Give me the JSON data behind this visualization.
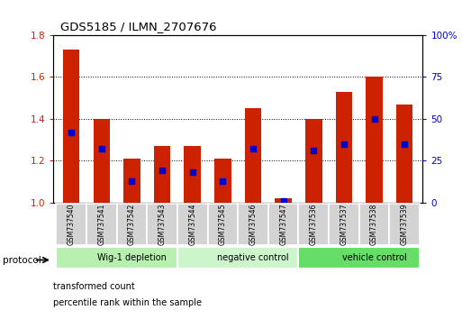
{
  "title": "GDS5185 / ILMN_2707676",
  "samples": [
    "GSM737540",
    "GSM737541",
    "GSM737542",
    "GSM737543",
    "GSM737544",
    "GSM737545",
    "GSM737546",
    "GSM737547",
    "GSM737536",
    "GSM737537",
    "GSM737538",
    "GSM737539"
  ],
  "transformed_counts": [
    1.73,
    1.4,
    1.21,
    1.27,
    1.27,
    1.21,
    1.45,
    1.02,
    1.4,
    1.53,
    1.6,
    1.47
  ],
  "percentile_ranks": [
    42,
    32,
    13,
    19,
    18,
    13,
    32,
    1,
    31,
    35,
    50,
    35
  ],
  "ylim_left": [
    1.0,
    1.8
  ],
  "ylim_right": [
    0,
    100
  ],
  "yticks_left": [
    1.0,
    1.2,
    1.4,
    1.6,
    1.8
  ],
  "yticks_right": [
    0,
    25,
    50,
    75,
    100
  ],
  "ytick_labels_right": [
    "0",
    "25",
    "50",
    "75",
    "100%"
  ],
  "bar_color": "#cc2200",
  "dot_color": "#0000cc",
  "groups": [
    {
      "label": "Wig-1 depletion",
      "start": 0,
      "end": 4,
      "color": "#b8f0b0"
    },
    {
      "label": "negative control",
      "start": 4,
      "end": 8,
      "color": "#ccf5cc"
    },
    {
      "label": "vehicle control",
      "start": 8,
      "end": 12,
      "color": "#66dd66"
    }
  ],
  "xlabel_protocol": "protocol",
  "legend_items": [
    {
      "label": "transformed count",
      "color": "#cc2200"
    },
    {
      "label": "percentile rank within the sample",
      "color": "#0000cc"
    }
  ],
  "tick_label_color_left": "#cc2200",
  "tick_label_color_right": "#0000cc",
  "bar_width": 0.55,
  "dot_size": 18,
  "base_value": 1.0,
  "figsize": [
    5.13,
    3.54
  ],
  "dpi": 100
}
